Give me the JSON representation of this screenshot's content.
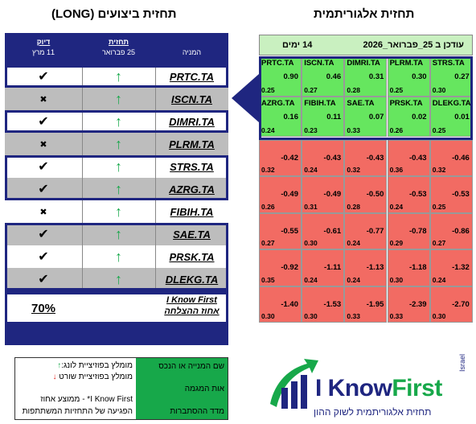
{
  "titles": {
    "left": "תחזית ביצועים (LONG)",
    "right": "תחזית אלגוריתמית"
  },
  "left_table": {
    "headers": {
      "accuracy": "דיוק",
      "accuracy_date": "11 מרץ",
      "forecast": "תחזית",
      "forecast_date": "25 פברואר",
      "stock": "המניה"
    },
    "rows": [
      {
        "ticker": "PRTC.TA",
        "result": "✔"
      },
      {
        "ticker": "ISCN.TA",
        "result": "✖"
      },
      {
        "ticker": "DIMRI.TA",
        "result": "✔"
      },
      {
        "ticker": "PLRM.TA",
        "result": "✖"
      },
      {
        "ticker": "STRS.TA",
        "result": "✔"
      },
      {
        "ticker": "AZRG.TA",
        "result": "✔"
      },
      {
        "ticker": "FIBIH.TA",
        "result": "✖"
      },
      {
        "ticker": "SAE.TA",
        "result": "✔"
      },
      {
        "ticker": "PRSK.TA",
        "result": "✔"
      },
      {
        "ticker": "DLEKG.TA",
        "result": "✔"
      }
    ],
    "forecast_arrow": "↑",
    "success_rate": "70%",
    "success_label_1": "I Know First",
    "success_label_2": "אחוז ההצלחה"
  },
  "right_grid": {
    "header_days": "14 ימים",
    "header_updated": "עודכן ב 25_פברואר_2026",
    "green_cells": [
      [
        {
          "t": "PRTC.TA",
          "s": "0.90",
          "p": "0.25"
        },
        {
          "t": "ISCN.TA",
          "s": "0.46",
          "p": "0.27"
        },
        {
          "t": "DIMRI.TA",
          "s": "0.31",
          "p": "0.28"
        },
        {
          "t": "PLRM.TA",
          "s": "0.30",
          "p": "0.25"
        },
        {
          "t": "STRS.TA",
          "s": "0.27",
          "p": "0.30"
        }
      ],
      [
        {
          "t": "AZRG.TA",
          "s": "0.16",
          "p": "0.24"
        },
        {
          "t": "FIBIH.TA",
          "s": "0.11",
          "p": "0.23"
        },
        {
          "t": "SAE.TA",
          "s": "0.07",
          "p": "0.33"
        },
        {
          "t": "PRSK.TA",
          "s": "0.02",
          "p": "0.26"
        },
        {
          "t": "DLEKG.TA",
          "s": "0.01",
          "p": "0.25"
        }
      ]
    ],
    "red_cells": [
      [
        {
          "s": "-0.42",
          "p": "0.32"
        },
        {
          "s": "-0.43",
          "p": "0.24"
        },
        {
          "s": "-0.43",
          "p": "0.32"
        },
        {
          "s": "-0.43",
          "p": "0.36"
        },
        {
          "s": "-0.46",
          "p": "0.32"
        }
      ],
      [
        {
          "s": "-0.49",
          "p": "0.26"
        },
        {
          "s": "-0.49",
          "p": "0.31"
        },
        {
          "s": "-0.50",
          "p": "0.28"
        },
        {
          "s": "-0.53",
          "p": "0.24"
        },
        {
          "s": "-0.53",
          "p": "0.25"
        }
      ],
      [
        {
          "s": "-0.55",
          "p": "0.27"
        },
        {
          "s": "-0.61",
          "p": "0.30"
        },
        {
          "s": "-0.77",
          "p": "0.24"
        },
        {
          "s": "-0.78",
          "p": "0.29"
        },
        {
          "s": "-0.86",
          "p": "0.27"
        }
      ],
      [
        {
          "s": "-0.92",
          "p": "0.35"
        },
        {
          "s": "-1.11",
          "p": "0.24"
        },
        {
          "s": "-1.13",
          "p": "0.24"
        },
        {
          "s": "-1.18",
          "p": "0.30"
        },
        {
          "s": "-1.32",
          "p": "0.24"
        }
      ],
      [
        {
          "s": "-1.40",
          "p": "0.30"
        },
        {
          "s": "-1.53",
          "p": "0.30"
        },
        {
          "s": "-1.95",
          "p": "0.33"
        },
        {
          "s": "-2.39",
          "p": "0.33"
        },
        {
          "s": "-2.70",
          "p": "0.30"
        }
      ]
    ]
  },
  "legend": {
    "line1": "מומלץ בפוזיציית לונג:",
    "line1_arrow": "↑",
    "line2": "מומלץ בפוזיציית שורט",
    "line2_arrow": "↓",
    "line3": "I Know First* - ממוצע אחוז",
    "line4": "הפגיעה של התחזיות המשתתפות",
    "right1": "שם המנייה או הנכס",
    "right2": "אות המגמה",
    "right3": "מדד ההסתברות"
  },
  "logo": {
    "name_part1": "I Know",
    "name_part2": "First",
    "country": "Israel",
    "tagline": "תחזית אלגוריתמית לשוק ההון"
  },
  "colors": {
    "navy": "#1f2680",
    "green_cell": "#66e65f",
    "red_cell": "#f26b63",
    "up_arrow": "#17a84a",
    "down_arrow": "#e0201a"
  }
}
